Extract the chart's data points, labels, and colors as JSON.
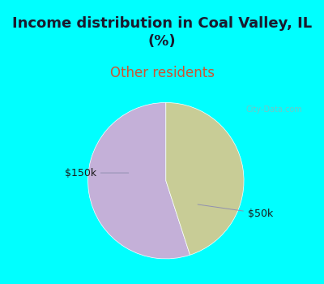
{
  "title": "Income distribution in Coal Valley, IL\n(%)",
  "subtitle": "Other residents",
  "slices": [
    55,
    45
  ],
  "slice_labels": [
    "$50k",
    "$150k"
  ],
  "colors": [
    "#c4b0d8",
    "#c8cc96"
  ],
  "title_bg_color": "#00FFFF",
  "chart_bg_color": "#ffffff",
  "title_color": "#1a1a2e",
  "subtitle_color": "#cc5533",
  "label_color": "#1a1a1a",
  "startangle": 90,
  "watermark": "City-Data.com",
  "title_fontsize": 13,
  "subtitle_fontsize": 12,
  "label_fontsize": 9
}
